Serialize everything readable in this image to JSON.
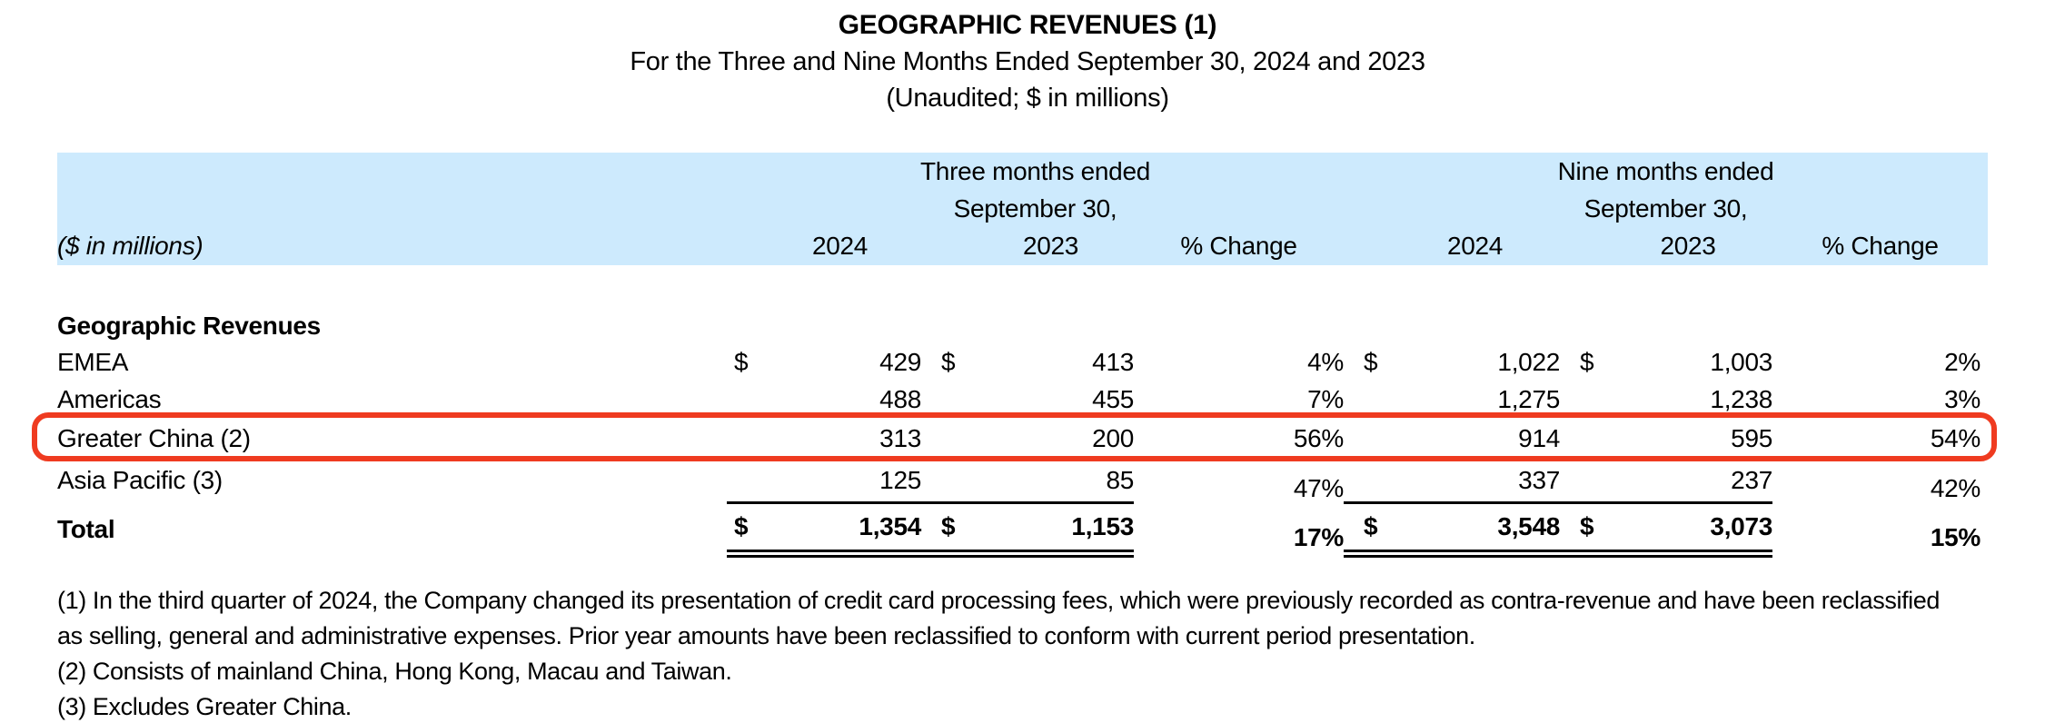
{
  "title": {
    "line1": "GEOGRAPHIC REVENUES (1)",
    "line2": "For the Three and Nine Months Ended September 30, 2024 and 2023",
    "line3": "(Unaudited; $ in millions)"
  },
  "table": {
    "header": {
      "three_months_group": "Three months ended",
      "nine_months_group": "Nine months ended",
      "september_label": "September 30,",
      "col_2024": "2024",
      "col_2023": "2023",
      "pct_change": "% Change",
      "units_label": "($ in millions)"
    },
    "section_label": "Geographic Revenues",
    "rows": [
      {
        "label": "EMEA",
        "d1": "$",
        "v1": "429",
        "d2": "$",
        "v2": "413",
        "p1": "4%",
        "d3": "$",
        "v3": "1,022",
        "d4": "$",
        "v4": "1,003",
        "p2": "2%"
      },
      {
        "label": "Americas",
        "d1": "",
        "v1": "488",
        "d2": "",
        "v2": "455",
        "p1": "7%",
        "d3": "",
        "v3": "1,275",
        "d4": "",
        "v4": "1,238",
        "p2": "3%"
      },
      {
        "label": "Greater China (2)",
        "d1": "",
        "v1": "313",
        "d2": "",
        "v2": "200",
        "p1": "56%",
        "d3": "",
        "v3": "914",
        "d4": "",
        "v4": "595",
        "p2": "54%"
      },
      {
        "label": "Asia Pacific (3)",
        "d1": "",
        "v1": "125",
        "d2": "",
        "v2": "85",
        "p1": "47%",
        "d3": "",
        "v3": "337",
        "d4": "",
        "v4": "237",
        "p2": "42%"
      }
    ],
    "total": {
      "label": "Total",
      "d1": "$",
      "v1": "1,354",
      "d2": "$",
      "v2": "1,153",
      "p1": "17%",
      "d3": "$",
      "v3": "3,548",
      "d4": "$",
      "v4": "3,073",
      "p2": "15%"
    }
  },
  "annotation": {
    "type": "highlight-box",
    "highlighted_row": "Greater China (2)",
    "color": "#ef3b20"
  },
  "colors": {
    "header_band": "#cdeafd",
    "highlight": "#ef3b20",
    "text": "#000000",
    "background": "#ffffff"
  },
  "footnotes": [
    "(1) In the third quarter of 2024, the Company changed its presentation of credit card processing fees, which were previously recorded as contra-revenue and have been reclassified",
    "as selling, general and administrative expenses. Prior year amounts have been reclassified to conform with current period presentation.",
    "(2) Consists of mainland China, Hong Kong, Macau and Taiwan.",
    "(3) Excludes Greater China."
  ]
}
